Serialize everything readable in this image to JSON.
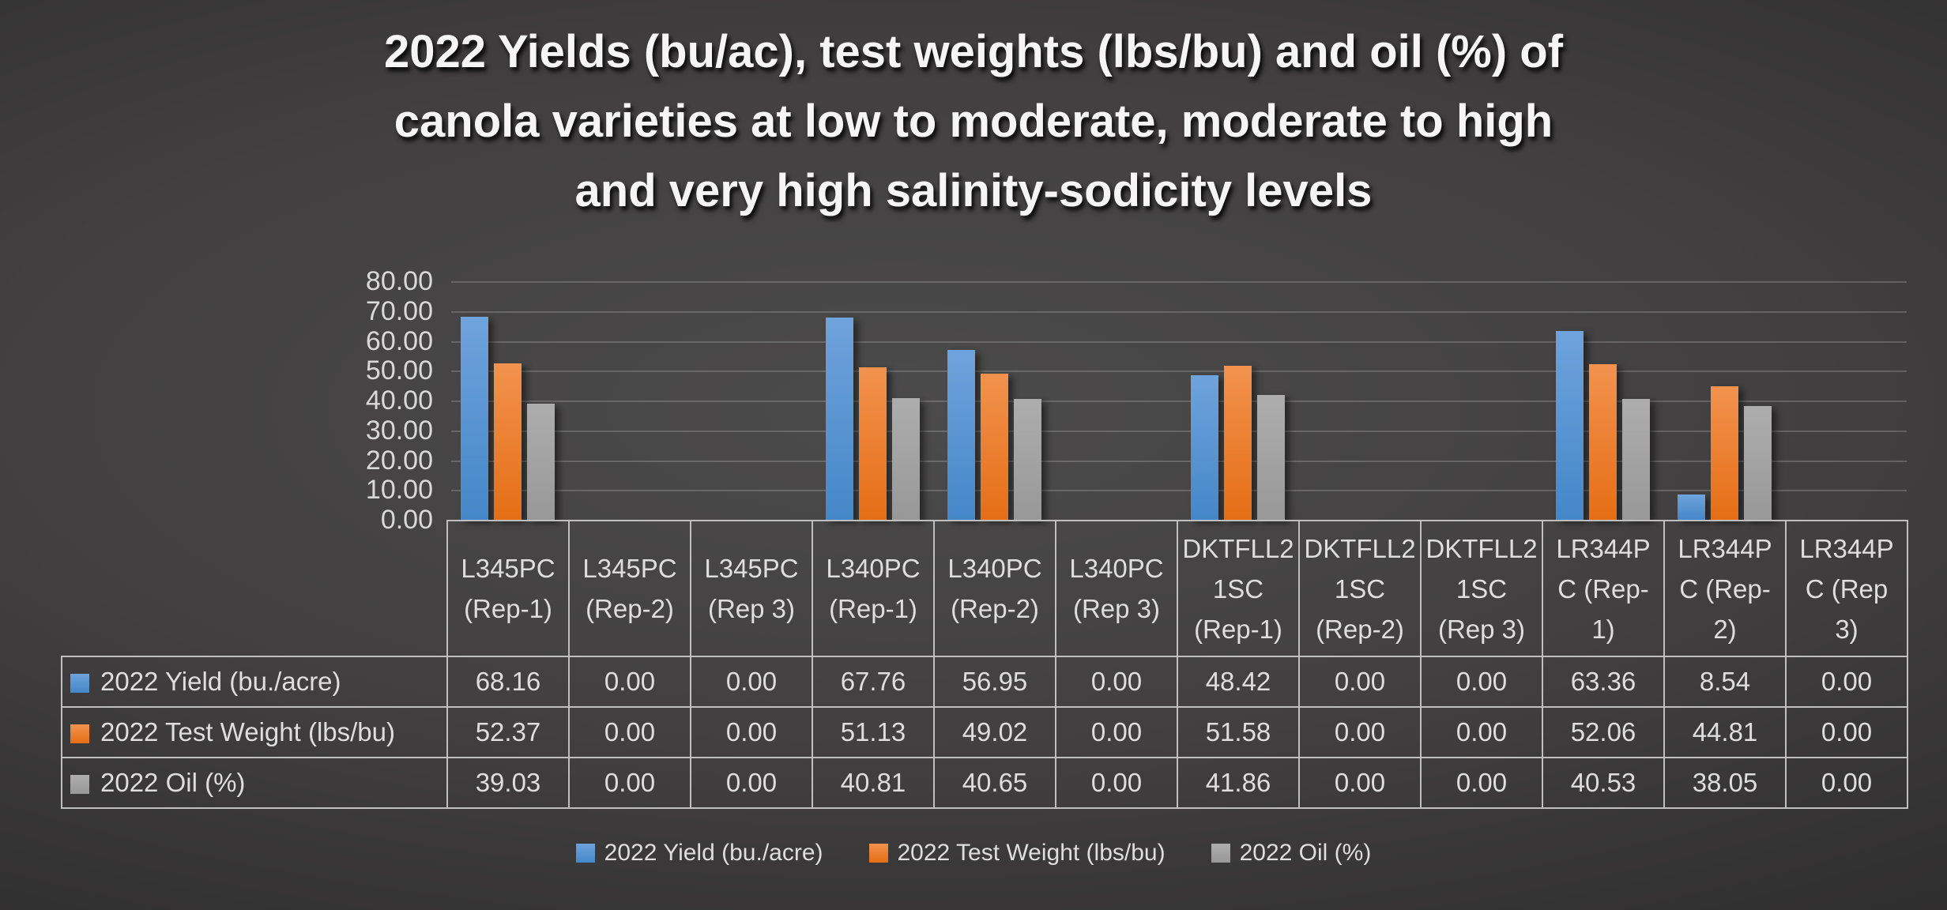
{
  "title": {
    "text": "2022 Yields (bu/ac), test weights (lbs/bu) and oil (%) of canola varieties at low to moderate, moderate to high and very high salinity-sodicity levels",
    "lines": [
      "2022 Yields (bu/ac), test weights (lbs/bu) and oil (%) of",
      "canola varieties at low to moderate, moderate to high",
      "and very high salinity-sodicity levels"
    ]
  },
  "chart_data": {
    "type": "bar",
    "title": "2022 Yields (bu/ac), test weights (lbs/bu) and oil (%) of canola varieties at low to moderate, moderate to high and very high salinity-sodicity levels",
    "xlabel": "",
    "ylabel": "",
    "ylim": [
      0,
      80
    ],
    "ytick_step": 10,
    "y_tick_labels": [
      "80.00",
      "70.00",
      "60.00",
      "50.00",
      "40.00",
      "30.00",
      "20.00",
      "10.00",
      "0.00"
    ],
    "grid": true,
    "legend_position": "bottom",
    "value_decimals": 2,
    "categories": [
      "L345PC (Rep-1)",
      "L345PC (Rep-2)",
      "L345PC (Rep 3)",
      "L340PC (Rep-1)",
      "L340PC (Rep-2)",
      "L340PC (Rep 3)",
      "DKTFLL21SC (Rep-1)",
      "DKTFLL21SC (Rep-2)",
      "DKTFLL21SC (Rep 3)",
      "LR344PC (Rep-1)",
      "LR344PC (Rep-2)",
      "LR344PC (Rep 3)"
    ],
    "series": [
      {
        "name": "2022 Yield (bu./acre)",
        "slug": "yield",
        "color": "#5B9BD5",
        "color_top": "#6FA3DC",
        "color_bottom": "#4487C8",
        "values": [
          68.16,
          0.0,
          0.0,
          67.76,
          56.95,
          0.0,
          48.42,
          0.0,
          0.0,
          63.36,
          8.54,
          0.0
        ]
      },
      {
        "name": "2022 Test Weight (lbs/bu)",
        "slug": "test-weight",
        "color": "#ED7D31",
        "color_top": "#F2924E",
        "color_bottom": "#E56E15",
        "values": [
          52.37,
          0.0,
          0.0,
          51.13,
          49.02,
          0.0,
          51.58,
          0.0,
          0.0,
          52.06,
          44.81,
          0.0
        ]
      },
      {
        "name": "2022 Oil (%)",
        "slug": "oil",
        "color": "#A5A5A5",
        "color_top": "#ADADAD",
        "color_bottom": "#989898",
        "values": [
          39.03,
          0.0,
          0.0,
          40.81,
          40.65,
          0.0,
          41.86,
          0.0,
          0.0,
          40.53,
          38.05,
          0.0
        ]
      }
    ]
  },
  "table": {
    "header_cells": [
      "L345PC\n(Rep-1)",
      "L345PC\n(Rep-2)",
      "L345PC\n(Rep 3)",
      "L340PC\n(Rep-1)",
      "L340PC\n(Rep-2)",
      "L340PC\n(Rep 3)",
      "DKTFLL2\n1SC\n(Rep-1)",
      "DKTFLL2\n1SC\n(Rep-2)",
      "DKTFLL2\n1SC\n(Rep 3)",
      "LR344P\nC (Rep-\n1)",
      "LR344P\nC (Rep-\n2)",
      "LR344P\nC (Rep\n3)"
    ]
  },
  "legend": {
    "items": [
      "2022 Yield (bu./acre)",
      "2022 Test Weight (lbs/bu)",
      "2022 Oil (%)"
    ]
  }
}
